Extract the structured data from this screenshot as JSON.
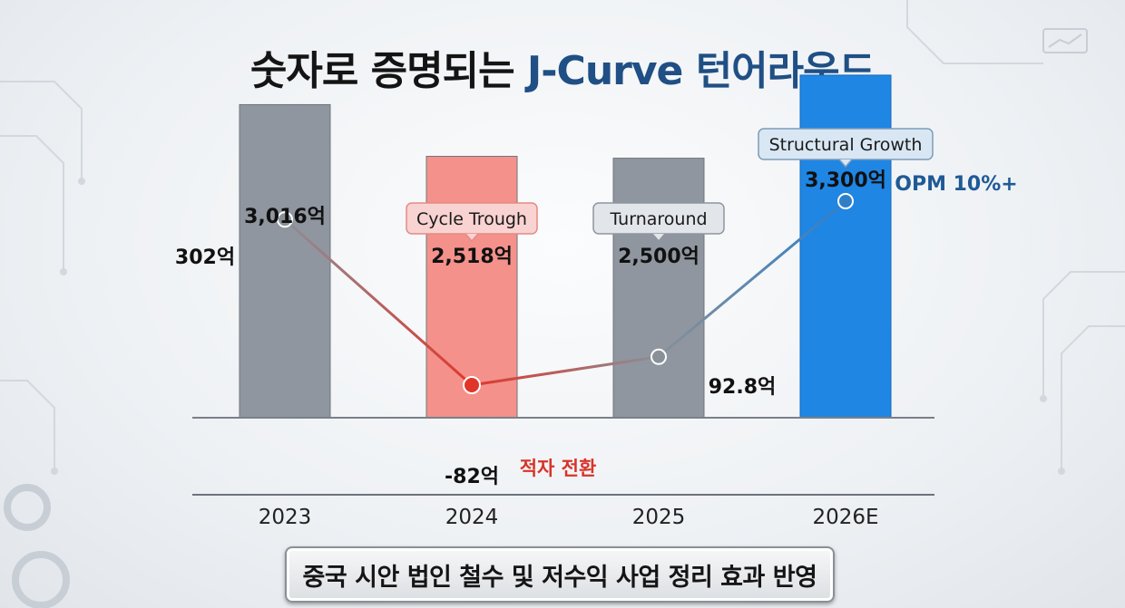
{
  "title": {
    "main": "숫자로 증명되는",
    "accent": "J-Curve 턴어라운드"
  },
  "chart_data": {
    "type": "bar",
    "categories": [
      "2023",
      "2024",
      "2025",
      "2026E"
    ],
    "series": [
      {
        "values": [
          3016,
          2518,
          2500,
          3300
        ]
      },
      {
        "values": [
          302,
          -82,
          92.8,
          330
        ]
      }
    ],
    "bar_labels": [
      "3,016억",
      "2,518억",
      "2,500억",
      "3,300억"
    ],
    "line_labels": [
      "302억",
      "-82억",
      "92.8억",
      ""
    ],
    "callouts": [
      "",
      "Cycle Trough",
      "Turnaround",
      "Structural Growth"
    ],
    "annotations": {
      "trough": "적자 전환",
      "opm": "OPM 10%+"
    },
    "bar_colors": [
      "#8f969f",
      "#f4918b",
      "#8f969f",
      "#1f86e4"
    ],
    "line_colors": {
      "start": "#8a9098",
      "trough": "#e0362a",
      "end": "#2f7fc8"
    },
    "ylim": [
      0,
      3500
    ],
    "line_ylim": [
      -150,
      400
    ],
    "grid": false
  },
  "footer": {
    "text": "중국 시안 법인 철수 및 저수익 사업 정리 효과 반영"
  }
}
